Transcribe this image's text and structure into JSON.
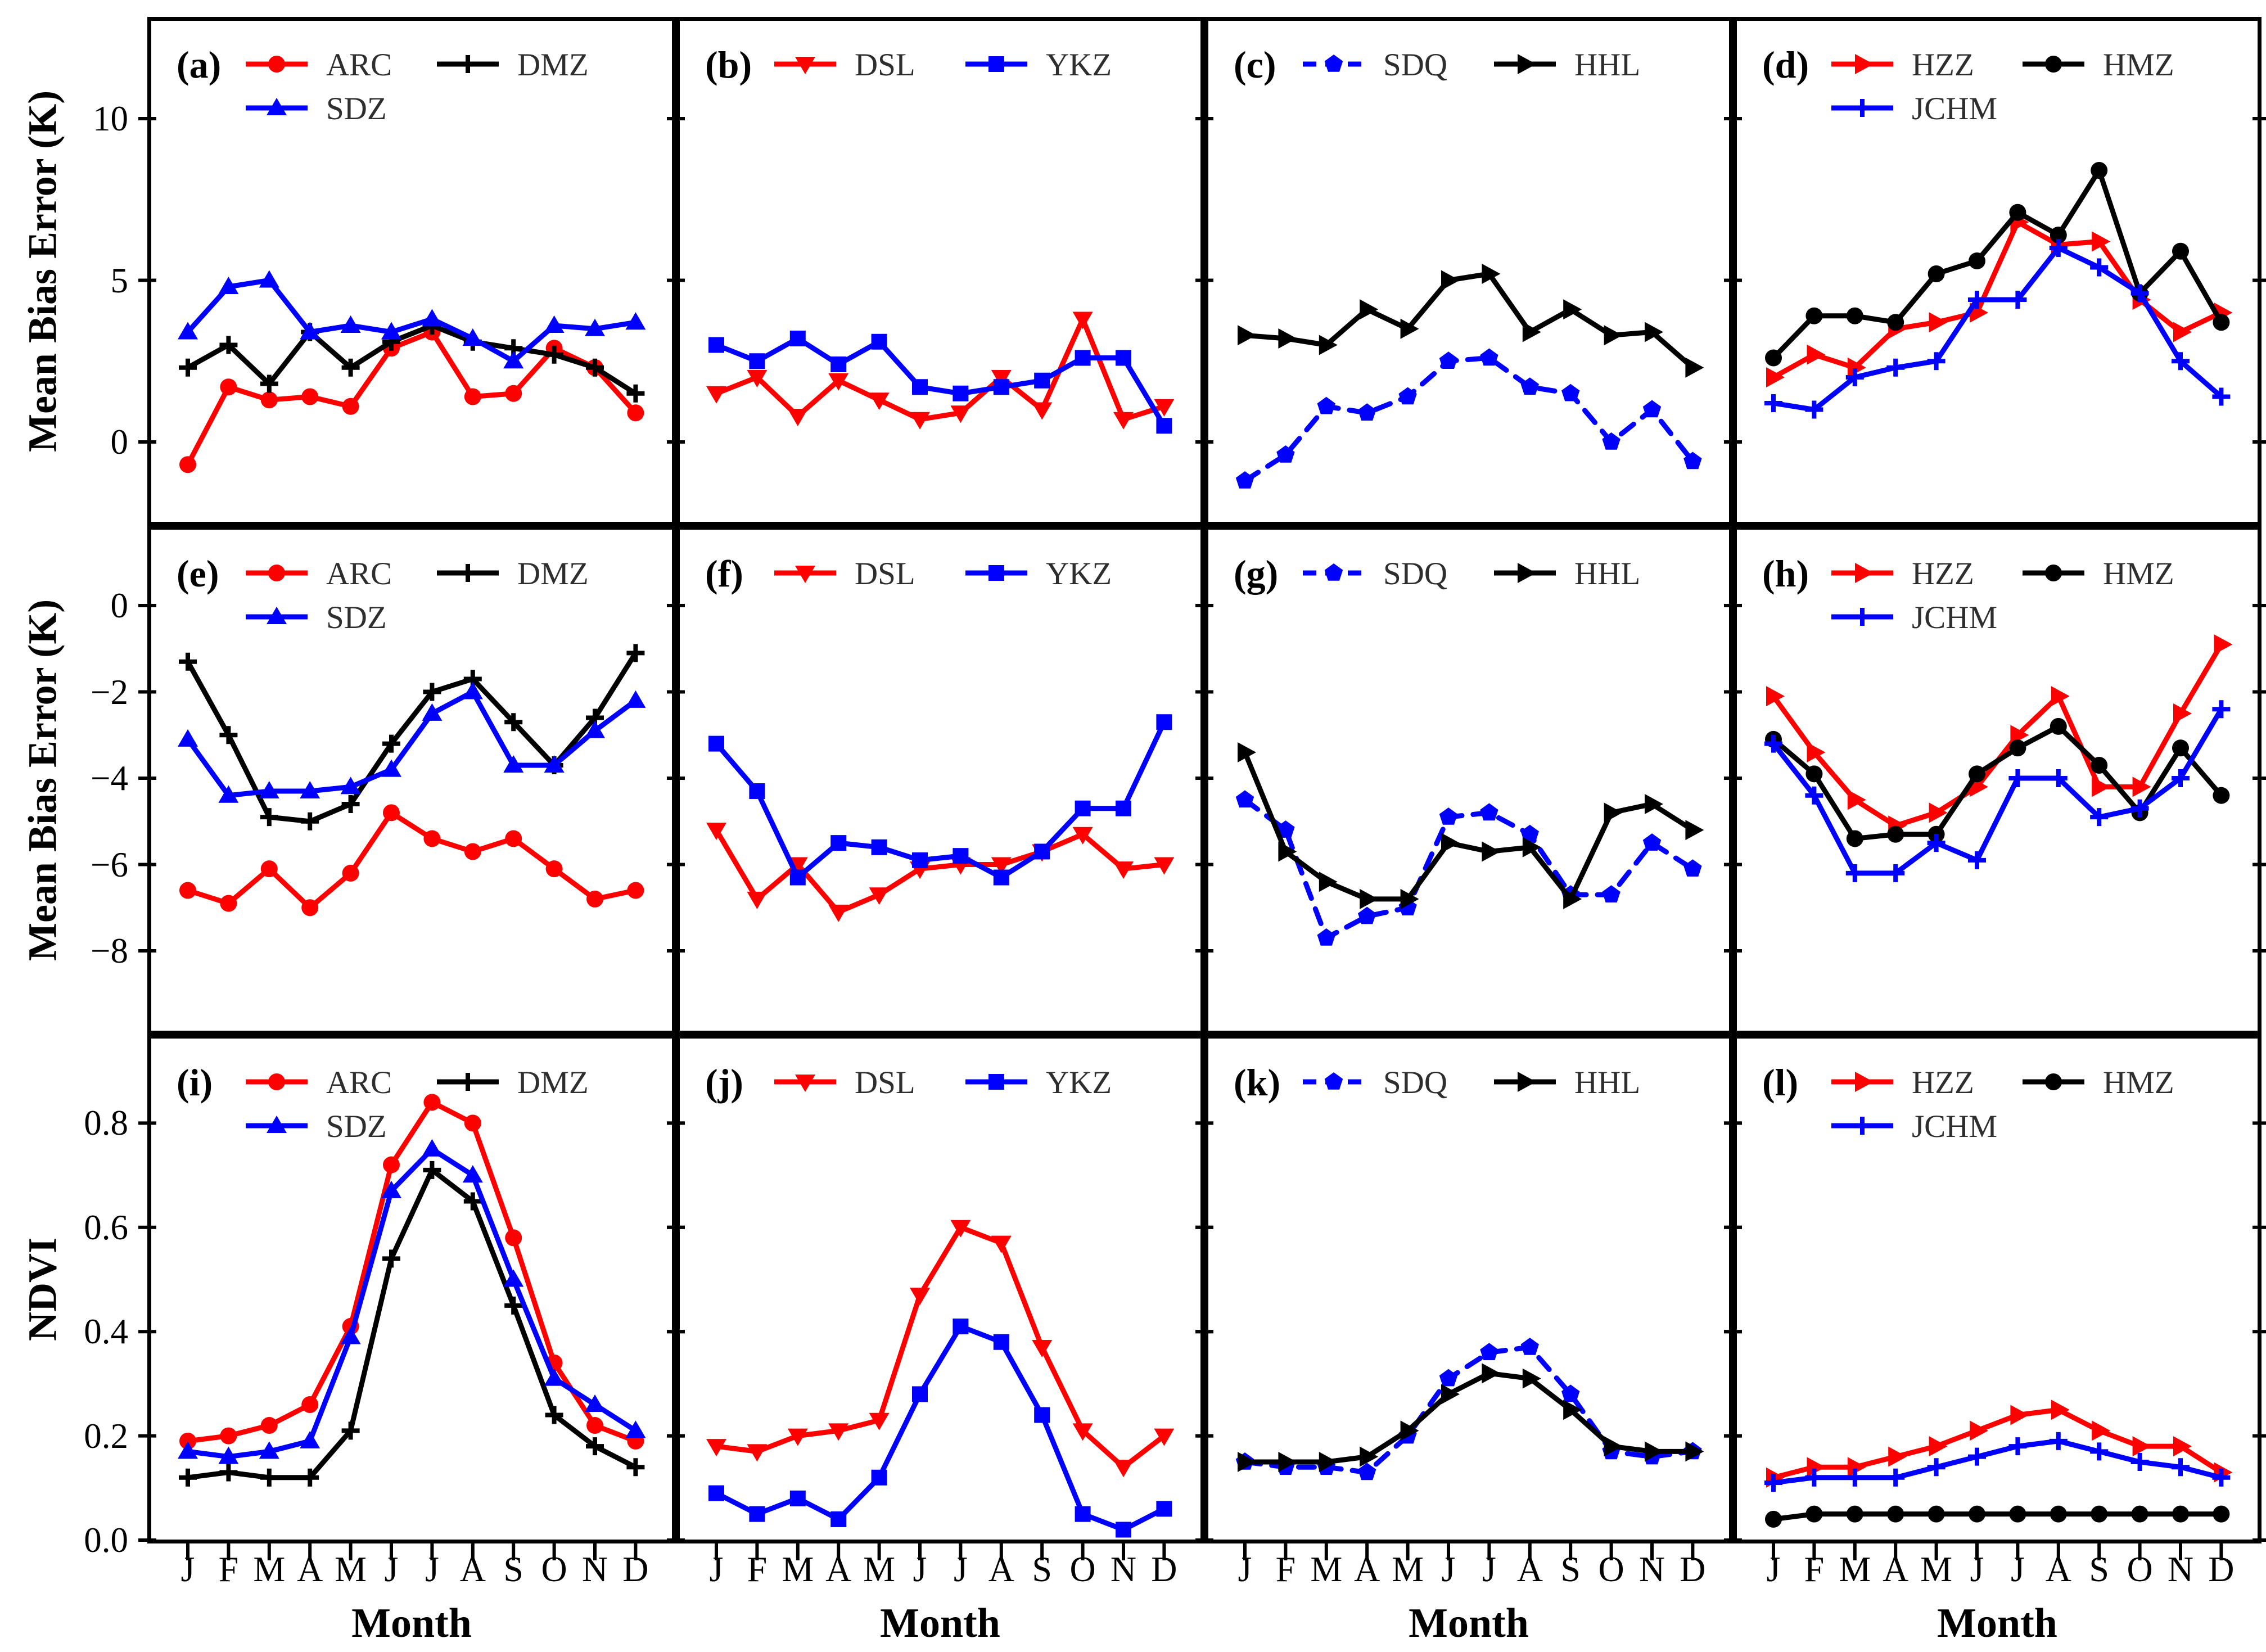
{
  "figure": {
    "background": "#ffffff"
  },
  "colors": {
    "red": "#ff0000",
    "blue": "#0000ff",
    "black": "#000000",
    "legend_text": "#2e2e2e"
  },
  "x_axis": {
    "label": "Month",
    "tick_labels": [
      "J",
      "F",
      "M",
      "A",
      "M",
      "J",
      "J",
      "A",
      "S",
      "O",
      "N",
      "D"
    ]
  },
  "rows": [
    {
      "ylabel": "Mean Bias Error (K)",
      "ylim": [
        -2.6,
        13.1
      ],
      "ticks": [
        {
          "v": 10,
          "label": "10"
        },
        {
          "v": 5,
          "label": "5"
        },
        {
          "v": 0,
          "label": "0"
        }
      ]
    },
    {
      "ylabel": "Mean Bias Error (K)",
      "ylim": [
        -9.9,
        1.9
      ],
      "ticks": [
        {
          "v": 0,
          "label": "0"
        },
        {
          "v": -2,
          "label": "−2"
        },
        {
          "v": -4,
          "label": "−4"
        },
        {
          "v": -6,
          "label": "−6"
        },
        {
          "v": -8,
          "label": "−8"
        }
      ]
    },
    {
      "ylabel": "NDVI",
      "ylim": [
        0.0,
        0.97
      ],
      "ticks": [
        {
          "v": 0.8,
          "label": "0.8"
        },
        {
          "v": 0.6,
          "label": "0.6"
        },
        {
          "v": 0.4,
          "label": "0.4"
        },
        {
          "v": 0.2,
          "label": "0.2"
        },
        {
          "v": 0.0,
          "label": "0.0"
        }
      ]
    }
  ],
  "chart_data": [
    {
      "panel_label": "(a)",
      "type": "line",
      "row": 0,
      "col": 0,
      "categories": [
        "J",
        "F",
        "M",
        "A",
        "M",
        "J",
        "J",
        "A",
        "S",
        "O",
        "N",
        "D"
      ],
      "series": [
        {
          "name": "ARC",
          "color": "red",
          "marker": "circle",
          "dashed": false,
          "values": [
            -0.7,
            1.7,
            1.3,
            1.4,
            1.1,
            2.9,
            3.4,
            1.4,
            1.5,
            2.9,
            2.3,
            0.9
          ]
        },
        {
          "name": "DMZ",
          "color": "black",
          "marker": "plus",
          "dashed": false,
          "values": [
            2.3,
            3.0,
            1.8,
            3.4,
            2.3,
            3.1,
            3.6,
            3.1,
            2.9,
            2.7,
            2.3,
            1.5
          ]
        },
        {
          "name": "SDZ",
          "color": "blue",
          "marker": "triangle-up",
          "dashed": false,
          "values": [
            3.4,
            4.8,
            5.0,
            3.4,
            3.6,
            3.4,
            3.8,
            3.2,
            2.5,
            3.6,
            3.5,
            3.7
          ]
        }
      ]
    },
    {
      "panel_label": "(b)",
      "type": "line",
      "row": 0,
      "col": 1,
      "categories": [
        "J",
        "F",
        "M",
        "A",
        "M",
        "J",
        "J",
        "A",
        "S",
        "O",
        "N",
        "D"
      ],
      "series": [
        {
          "name": "DSL",
          "color": "red",
          "marker": "triangle-down",
          "dashed": false,
          "values": [
            1.5,
            2.0,
            0.8,
            1.9,
            1.3,
            0.7,
            0.9,
            2.0,
            1.0,
            3.8,
            0.7,
            1.1
          ]
        },
        {
          "name": "YKZ",
          "color": "blue",
          "marker": "square",
          "dashed": false,
          "values": [
            3.0,
            2.5,
            3.2,
            2.4,
            3.1,
            1.7,
            1.5,
            1.7,
            1.9,
            2.6,
            2.6,
            0.5
          ]
        }
      ]
    },
    {
      "panel_label": "(c)",
      "type": "line",
      "row": 0,
      "col": 2,
      "categories": [
        "J",
        "F",
        "M",
        "A",
        "M",
        "J",
        "J",
        "A",
        "S",
        "O",
        "N",
        "D"
      ],
      "series": [
        {
          "name": "SDQ",
          "color": "blue",
          "marker": "pentagon",
          "dashed": true,
          "values": [
            -1.2,
            -0.4,
            1.1,
            0.9,
            1.4,
            2.5,
            2.6,
            1.7,
            1.5,
            0.0,
            1.0,
            -0.6
          ]
        },
        {
          "name": "HHL",
          "color": "black",
          "marker": "triangle-right",
          "dashed": false,
          "values": [
            3.3,
            3.2,
            3.0,
            4.1,
            3.5,
            5.0,
            5.2,
            3.4,
            4.1,
            3.3,
            3.4,
            2.3
          ]
        }
      ]
    },
    {
      "panel_label": "(d)",
      "type": "line",
      "row": 0,
      "col": 3,
      "categories": [
        "J",
        "F",
        "M",
        "A",
        "M",
        "J",
        "J",
        "A",
        "S",
        "O",
        "N",
        "D"
      ],
      "series": [
        {
          "name": "HZZ",
          "color": "red",
          "marker": "triangle-right",
          "dashed": false,
          "values": [
            2.0,
            2.7,
            2.3,
            3.5,
            3.7,
            4.0,
            6.8,
            6.1,
            6.2,
            4.4,
            3.4,
            4.0
          ]
        },
        {
          "name": "HMZ",
          "color": "black",
          "marker": "circle",
          "dashed": false,
          "values": [
            2.6,
            3.9,
            3.9,
            3.7,
            5.2,
            5.6,
            7.1,
            6.4,
            8.4,
            4.6,
            5.9,
            3.7
          ]
        },
        {
          "name": "JCHM",
          "color": "blue",
          "marker": "plus",
          "dashed": false,
          "values": [
            1.2,
            1.0,
            2.0,
            2.3,
            2.5,
            4.4,
            4.4,
            6.0,
            5.4,
            4.6,
            2.5,
            1.4
          ]
        }
      ]
    },
    {
      "panel_label": "(e)",
      "type": "line",
      "row": 1,
      "col": 0,
      "categories": [
        "J",
        "F",
        "M",
        "A",
        "M",
        "J",
        "J",
        "A",
        "S",
        "O",
        "N",
        "D"
      ],
      "series": [
        {
          "name": "ARC",
          "color": "red",
          "marker": "circle",
          "dashed": false,
          "values": [
            -6.6,
            -6.9,
            -6.1,
            -7.0,
            -6.2,
            -4.8,
            -5.4,
            -5.7,
            -5.4,
            -6.1,
            -6.8,
            -6.6
          ]
        },
        {
          "name": "DMZ",
          "color": "black",
          "marker": "plus",
          "dashed": false,
          "values": [
            -1.3,
            -3.0,
            -4.9,
            -5.0,
            -4.6,
            -3.2,
            -2.0,
            -1.7,
            -2.7,
            -3.7,
            -2.6,
            -1.1
          ]
        },
        {
          "name": "SDZ",
          "color": "blue",
          "marker": "triangle-up",
          "dashed": false,
          "values": [
            -3.1,
            -4.4,
            -4.3,
            -4.3,
            -4.2,
            -3.8,
            -2.5,
            -2.0,
            -3.7,
            -3.7,
            -2.9,
            -2.2
          ]
        }
      ]
    },
    {
      "panel_label": "(f)",
      "type": "line",
      "row": 1,
      "col": 1,
      "categories": [
        "J",
        "F",
        "M",
        "A",
        "M",
        "J",
        "J",
        "A",
        "S",
        "O",
        "N",
        "D"
      ],
      "series": [
        {
          "name": "DSL",
          "color": "red",
          "marker": "triangle-down",
          "dashed": false,
          "values": [
            -5.2,
            -6.8,
            -6.0,
            -7.1,
            -6.7,
            -6.1,
            -6.0,
            -6.0,
            -5.7,
            -5.3,
            -6.1,
            -6.0
          ]
        },
        {
          "name": "YKZ",
          "color": "blue",
          "marker": "square",
          "dashed": false,
          "values": [
            -3.2,
            -4.3,
            -6.3,
            -5.5,
            -5.6,
            -5.9,
            -5.8,
            -6.3,
            -5.7,
            -4.7,
            -4.7,
            -2.7
          ]
        }
      ]
    },
    {
      "panel_label": "(g)",
      "type": "line",
      "row": 1,
      "col": 2,
      "categories": [
        "J",
        "F",
        "M",
        "A",
        "M",
        "J",
        "J",
        "A",
        "S",
        "O",
        "N",
        "D"
      ],
      "series": [
        {
          "name": "SDQ",
          "color": "blue",
          "marker": "pentagon",
          "dashed": true,
          "values": [
            -4.5,
            -5.2,
            -7.7,
            -7.2,
            -7.0,
            -4.9,
            -4.8,
            -5.3,
            -6.7,
            -6.7,
            -5.5,
            -6.1
          ]
        },
        {
          "name": "HHL",
          "color": "black",
          "marker": "triangle-right",
          "dashed": false,
          "values": [
            -3.4,
            -5.7,
            -6.4,
            -6.8,
            -6.8,
            -5.5,
            -5.7,
            -5.6,
            -6.8,
            -4.8,
            -4.6,
            -5.2
          ]
        }
      ]
    },
    {
      "panel_label": "(h)",
      "type": "line",
      "row": 1,
      "col": 3,
      "categories": [
        "J",
        "F",
        "M",
        "A",
        "M",
        "J",
        "J",
        "A",
        "S",
        "O",
        "N",
        "D"
      ],
      "series": [
        {
          "name": "HZZ",
          "color": "red",
          "marker": "triangle-right",
          "dashed": false,
          "values": [
            -2.1,
            -3.4,
            -4.5,
            -5.1,
            -4.8,
            -4.2,
            -3.0,
            -2.1,
            -4.2,
            -4.2,
            -2.5,
            -0.9
          ]
        },
        {
          "name": "HMZ",
          "color": "black",
          "marker": "circle",
          "dashed": false,
          "values": [
            -3.1,
            -3.9,
            -5.4,
            -5.3,
            -5.3,
            -3.9,
            -3.3,
            -2.8,
            -3.7,
            -4.8,
            -3.3,
            -4.4
          ]
        },
        {
          "name": "JCHM",
          "color": "blue",
          "marker": "plus",
          "dashed": false,
          "values": [
            -3.2,
            -4.4,
            -6.2,
            -6.2,
            -5.5,
            -5.9,
            -4.0,
            -4.0,
            -4.9,
            -4.7,
            -4.0,
            -2.4
          ]
        }
      ]
    },
    {
      "panel_label": "(i)",
      "type": "line",
      "row": 2,
      "col": 0,
      "categories": [
        "J",
        "F",
        "M",
        "A",
        "M",
        "J",
        "J",
        "A",
        "S",
        "O",
        "N",
        "D"
      ],
      "series": [
        {
          "name": "ARC",
          "color": "red",
          "marker": "circle",
          "dashed": false,
          "values": [
            0.19,
            0.2,
            0.22,
            0.26,
            0.41,
            0.72,
            0.84,
            0.8,
            0.58,
            0.34,
            0.22,
            0.19
          ]
        },
        {
          "name": "DMZ",
          "color": "black",
          "marker": "plus",
          "dashed": false,
          "values": [
            0.12,
            0.13,
            0.12,
            0.12,
            0.21,
            0.54,
            0.71,
            0.65,
            0.45,
            0.24,
            0.18,
            0.14
          ]
        },
        {
          "name": "SDZ",
          "color": "blue",
          "marker": "triangle-up",
          "dashed": false,
          "values": [
            0.17,
            0.16,
            0.17,
            0.19,
            0.39,
            0.67,
            0.75,
            0.7,
            0.5,
            0.31,
            0.26,
            0.21
          ]
        }
      ]
    },
    {
      "panel_label": "(j)",
      "type": "line",
      "row": 2,
      "col": 1,
      "categories": [
        "J",
        "F",
        "M",
        "A",
        "M",
        "J",
        "J",
        "A",
        "S",
        "O",
        "N",
        "D"
      ],
      "series": [
        {
          "name": "DSL",
          "color": "red",
          "marker": "triangle-down",
          "dashed": false,
          "values": [
            0.18,
            0.17,
            0.2,
            0.21,
            0.23,
            0.47,
            0.6,
            0.57,
            0.37,
            0.21,
            0.14,
            0.2
          ]
        },
        {
          "name": "YKZ",
          "color": "blue",
          "marker": "square",
          "dashed": false,
          "values": [
            0.09,
            0.05,
            0.08,
            0.04,
            0.12,
            0.28,
            0.41,
            0.38,
            0.24,
            0.05,
            0.02,
            0.06
          ]
        }
      ]
    },
    {
      "panel_label": "(k)",
      "type": "line",
      "row": 2,
      "col": 2,
      "categories": [
        "J",
        "F",
        "M",
        "A",
        "M",
        "J",
        "J",
        "A",
        "S",
        "O",
        "N",
        "D"
      ],
      "series": [
        {
          "name": "SDQ",
          "color": "blue",
          "marker": "pentagon",
          "dashed": true,
          "values": [
            0.15,
            0.14,
            0.14,
            0.13,
            0.2,
            0.31,
            0.36,
            0.37,
            0.28,
            0.17,
            0.16,
            0.17
          ]
        },
        {
          "name": "HHL",
          "color": "black",
          "marker": "triangle-right",
          "dashed": false,
          "values": [
            0.15,
            0.15,
            0.15,
            0.16,
            0.21,
            0.28,
            0.32,
            0.31,
            0.25,
            0.18,
            0.17,
            0.17
          ]
        }
      ]
    },
    {
      "panel_label": "(l)",
      "type": "line",
      "row": 2,
      "col": 3,
      "categories": [
        "J",
        "F",
        "M",
        "A",
        "M",
        "J",
        "J",
        "A",
        "S",
        "O",
        "N",
        "D"
      ],
      "series": [
        {
          "name": "HZZ",
          "color": "red",
          "marker": "triangle-right",
          "dashed": false,
          "values": [
            0.12,
            0.14,
            0.14,
            0.16,
            0.18,
            0.21,
            0.24,
            0.25,
            0.21,
            0.18,
            0.18,
            0.13
          ]
        },
        {
          "name": "HMZ",
          "color": "black",
          "marker": "circle",
          "dashed": false,
          "values": [
            0.04,
            0.05,
            0.05,
            0.05,
            0.05,
            0.05,
            0.05,
            0.05,
            0.05,
            0.05,
            0.05,
            0.05
          ]
        },
        {
          "name": "JCHM",
          "color": "blue",
          "marker": "plus",
          "dashed": false,
          "values": [
            0.11,
            0.12,
            0.12,
            0.12,
            0.14,
            0.16,
            0.18,
            0.19,
            0.17,
            0.15,
            0.14,
            0.12
          ]
        }
      ]
    }
  ]
}
